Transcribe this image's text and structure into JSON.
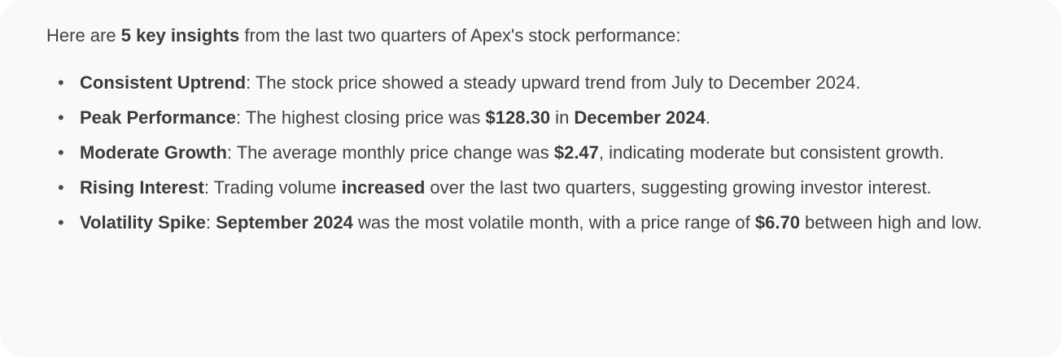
{
  "colors": {
    "page_background": "#ffffff",
    "card_background": "#f9f9f9",
    "text": "#424242",
    "bold_text": "#3b3b3b"
  },
  "message": {
    "bullet_glyph": "•",
    "intro_segments": [
      {
        "text": "Here are ",
        "bold": false
      },
      {
        "text": "5 key insights",
        "bold": true
      },
      {
        "text": " from the last two quarters of Apex's stock performance:",
        "bold": false
      }
    ],
    "bullets": [
      {
        "segments": [
          {
            "text": "Consistent Uptrend",
            "bold": true
          },
          {
            "text": ": The stock price showed a steady upward trend from July to December 2024.",
            "bold": false
          }
        ]
      },
      {
        "segments": [
          {
            "text": "Peak Performance",
            "bold": true
          },
          {
            "text": ": The highest closing price was ",
            "bold": false
          },
          {
            "text": "$128.30",
            "bold": true
          },
          {
            "text": " in ",
            "bold": false
          },
          {
            "text": "December 2024",
            "bold": true
          },
          {
            "text": ".",
            "bold": false
          }
        ]
      },
      {
        "segments": [
          {
            "text": "Moderate Growth",
            "bold": true
          },
          {
            "text": ": The average monthly price change was ",
            "bold": false
          },
          {
            "text": "$2.47",
            "bold": true
          },
          {
            "text": ", indicating moderate but consistent growth.",
            "bold": false
          }
        ]
      },
      {
        "segments": [
          {
            "text": "Rising Interest",
            "bold": true
          },
          {
            "text": ": Trading volume ",
            "bold": false
          },
          {
            "text": "increased",
            "bold": true
          },
          {
            "text": " over the last two quarters, suggesting growing investor interest.",
            "bold": false
          }
        ]
      },
      {
        "segments": [
          {
            "text": "Volatility Spike",
            "bold": true
          },
          {
            "text": ": ",
            "bold": false
          },
          {
            "text": "September 2024",
            "bold": true
          },
          {
            "text": " was the most volatile month, with a price range of ",
            "bold": false
          },
          {
            "text": "$6.70",
            "bold": true
          },
          {
            "text": " between high and low.",
            "bold": false
          }
        ]
      }
    ]
  }
}
